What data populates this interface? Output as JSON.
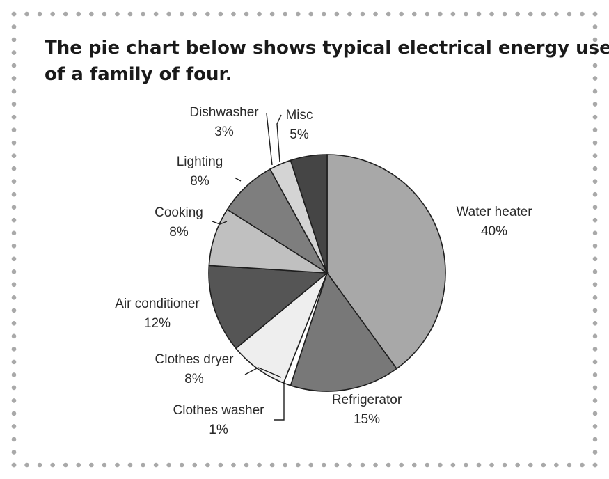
{
  "heading": {
    "line1": "The pie chart below shows typical electrical energy use",
    "line2": "of a family of four."
  },
  "chart_data": {
    "type": "pie",
    "title": "",
    "slices": [
      {
        "label": "Water heater",
        "percent_label": "40%",
        "value": 40,
        "color": "#a8a8a8"
      },
      {
        "label": "Refrigerator",
        "percent_label": "15%",
        "value": 15,
        "color": "#787878"
      },
      {
        "label": "Clothes washer",
        "percent_label": "1%",
        "value": 1,
        "color": "#ffffff"
      },
      {
        "label": "Clothes dryer",
        "percent_label": "8%",
        "value": 8,
        "color": "#eeeeee"
      },
      {
        "label": "Air conditioner",
        "percent_label": "12%",
        "value": 12,
        "color": "#555555"
      },
      {
        "label": "Cooking",
        "percent_label": "8%",
        "value": 8,
        "color": "#c0c0c0"
      },
      {
        "label": "Lighting",
        "percent_label": "8%",
        "value": 8,
        "color": "#7e7e7e"
      },
      {
        "label": "Dishwasher",
        "percent_label": "3%",
        "value": 3,
        "color": "#d4d4d4"
      },
      {
        "label": "Misc",
        "percent_label": "5%",
        "value": 5,
        "color": "#454545"
      }
    ]
  }
}
